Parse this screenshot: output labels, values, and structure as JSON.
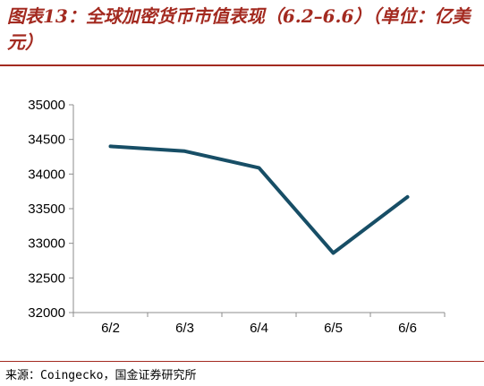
{
  "header": {
    "title": "图表13：全球加密货币市值表现（6.2–6.6）（单位：亿美元）"
  },
  "chart_data": {
    "type": "line",
    "title": "图表13：全球加密货币市值表现（6.2–6.6）（单位：亿美元）",
    "categories": [
      "6/2",
      "6/3",
      "6/4",
      "6/5",
      "6/6"
    ],
    "series": [
      {
        "values": [
          34400,
          34330,
          34090,
          32860,
          33670
        ]
      }
    ],
    "ylim": [
      32000,
      35000
    ],
    "yticks": [
      "32000",
      "32500",
      "33000",
      "33500",
      "34000",
      "34500",
      "35000"
    ],
    "xlabel": "",
    "ylabel": "",
    "grid": false,
    "line_color": "#174e66"
  },
  "footer": {
    "source": "来源：Coingecko，国金证券研究所"
  }
}
